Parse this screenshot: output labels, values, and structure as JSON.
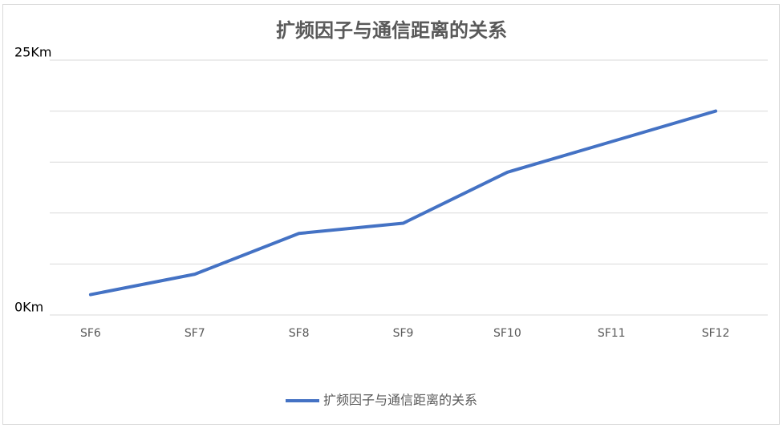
{
  "chart_data": {
    "type": "line",
    "title": "扩频因子与通信距离的关系",
    "categories": [
      "SF6",
      "SF7",
      "SF8",
      "SF9",
      "SF10",
      "SF11",
      "SF12"
    ],
    "series": [
      {
        "name": "扩频因子与通信距离的关系",
        "color": "#4472c4",
        "values": [
          2,
          4,
          8,
          9,
          14,
          17,
          20
        ]
      }
    ],
    "ylim": [
      0,
      25
    ],
    "yticks": [
      {
        "value": 0,
        "label": "0Km"
      },
      {
        "value": 25,
        "label": "25Km"
      }
    ],
    "ygrid": [
      0,
      5,
      10,
      15,
      20,
      25
    ],
    "grid": true,
    "legend": "bottom"
  }
}
